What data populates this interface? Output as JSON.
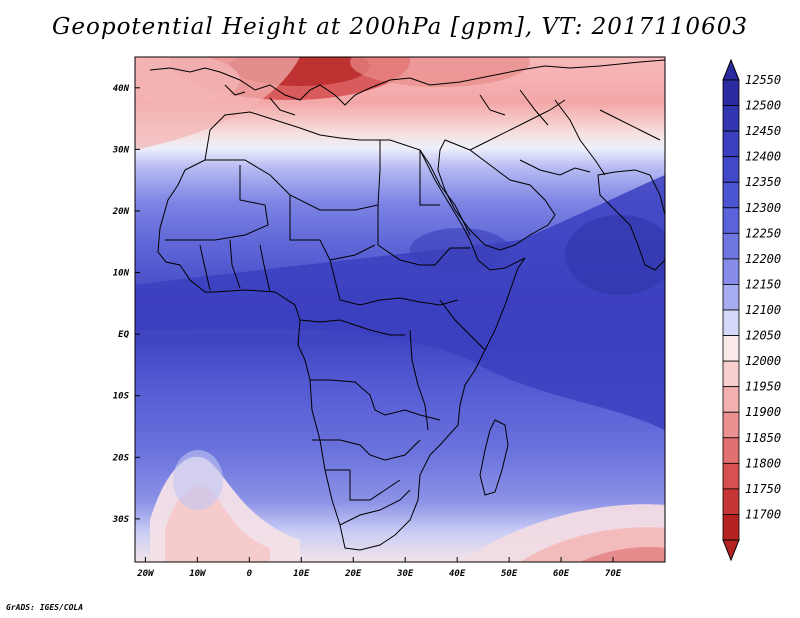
{
  "title": "Geopotential Height at 200hPa [gpm], VT: 2017110603",
  "credit": "GrADS: IGES/COLA",
  "map": {
    "lat_labels": [
      "40N",
      "30N",
      "20N",
      "10N",
      "EQ",
      "10S",
      "20S",
      "30S"
    ],
    "lat_values": [
      40,
      30,
      20,
      10,
      0,
      -10,
      -20,
      -30
    ],
    "lon_labels": [
      "20W",
      "10W",
      "0",
      "10E",
      "20E",
      "30E",
      "40E",
      "50E",
      "60E",
      "70E"
    ],
    "lon_values": [
      -20,
      -10,
      0,
      10,
      20,
      30,
      40,
      50,
      60,
      70
    ],
    "lon_range": [
      -22,
      80
    ],
    "lat_range": [
      -37,
      45
    ]
  },
  "colorbar": {
    "levels": [
      "12550",
      "12500",
      "12450",
      "12400",
      "12350",
      "12300",
      "12250",
      "12200",
      "12150",
      "12100",
      "12050",
      "12000",
      "11950",
      "11900",
      "11850",
      "11800",
      "11750",
      "11700"
    ],
    "colors": [
      "#2b2a9e",
      "#3236b0",
      "#3a40bf",
      "#4149c9",
      "#4c55d2",
      "#5a63da",
      "#6e76e0",
      "#868ce8",
      "#a7abf0",
      "#d6d8fa",
      "#fbeaea",
      "#f8cfcf",
      "#f2b0b0",
      "#eb9090",
      "#e27070",
      "#d85050",
      "#c73636",
      "#b52222"
    ]
  },
  "field_colors": {
    "deep": "#3a3fc2",
    "blue": "#4b52cf",
    "mid": "#6068d8",
    "light": "#8a90e6",
    "pale": "#c8cbf5",
    "white": "#f6f2f4",
    "pink": "#f4c2c2",
    "red": "#e48a8a",
    "darkred": "#c43c3c"
  }
}
